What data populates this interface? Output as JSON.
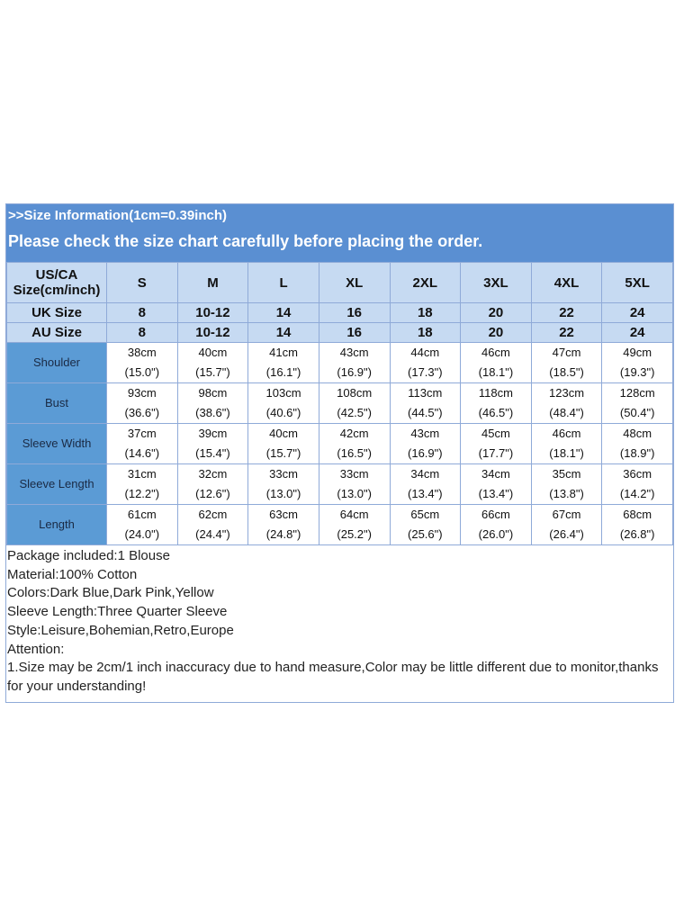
{
  "header": {
    "info": ">>Size Information(1cm=0.39inch)",
    "notice": "Please check the size chart carefully before placing the order."
  },
  "table": {
    "size_header": "US/CA Size(cm/inch)",
    "sizes": [
      "S",
      "M",
      "L",
      "XL",
      "2XL",
      "3XL",
      "4XL",
      "5XL"
    ],
    "uk": {
      "label": "UK Size",
      "values": [
        "8",
        "10-12",
        "14",
        "16",
        "18",
        "20",
        "22",
        "24"
      ]
    },
    "au": {
      "label": "AU Size",
      "values": [
        "8",
        "10-12",
        "14",
        "16",
        "18",
        "20",
        "22",
        "24"
      ]
    },
    "rows": [
      {
        "label": "Shoulder",
        "cm": [
          "38cm",
          "40cm",
          "41cm",
          "43cm",
          "44cm",
          "46cm",
          "47cm",
          "49cm"
        ],
        "inch": [
          "(15.0\")",
          "(15.7\")",
          "(16.1\")",
          "(16.9\")",
          "(17.3\")",
          "(18.1\")",
          "(18.5\")",
          "(19.3\")"
        ]
      },
      {
        "label": "Bust",
        "cm": [
          "93cm",
          "98cm",
          "103cm",
          "108cm",
          "113cm",
          "118cm",
          "123cm",
          "128cm"
        ],
        "inch": [
          "(36.6\")",
          "(38.6\")",
          "(40.6\")",
          "(42.5\")",
          "(44.5\")",
          "(46.5\")",
          "(48.4\")",
          "(50.4\")"
        ]
      },
      {
        "label": "Sleeve Width",
        "cm": [
          "37cm",
          "39cm",
          "40cm",
          "42cm",
          "43cm",
          "45cm",
          "46cm",
          "48cm"
        ],
        "inch": [
          "(14.6\")",
          "(15.4\")",
          "(15.7\")",
          "(16.5\")",
          "(16.9\")",
          "(17.7\")",
          "(18.1\")",
          "(18.9\")"
        ]
      },
      {
        "label": "Sleeve Length",
        "cm": [
          "31cm",
          "32cm",
          "33cm",
          "33cm",
          "34cm",
          "34cm",
          "35cm",
          "36cm"
        ],
        "inch": [
          "(12.2\")",
          "(12.6\")",
          "(13.0\")",
          "(13.0\")",
          "(13.4\")",
          "(13.4\")",
          "(13.8\")",
          "(14.2\")"
        ]
      },
      {
        "label": "Length",
        "cm": [
          "61cm",
          "62cm",
          "63cm",
          "64cm",
          "65cm",
          "66cm",
          "67cm",
          "68cm"
        ],
        "inch": [
          "(24.0\")",
          "(24.4\")",
          "(24.8\")",
          "(25.2\")",
          "(25.6\")",
          "(26.0\")",
          "(26.4\")",
          "(26.8\")"
        ]
      }
    ]
  },
  "notes": [
    "Package included:1 Blouse",
    "Material:100% Cotton",
    "Colors:Dark Blue,Dark Pink,Yellow",
    "Sleeve Length:Three Quarter Sleeve",
    "Style:Leisure,Bohemian,Retro,Europe",
    "Attention:",
    "1.Size may be 2cm/1 inch inaccuracy due to hand measure,Color may be little different due to monitor,thanks for your understanding!"
  ],
  "colors": {
    "band": "#5a8fd2",
    "header_cells": "#c6daf2",
    "label_cells": "#5b9bd5",
    "grid": "#8faad8"
  }
}
